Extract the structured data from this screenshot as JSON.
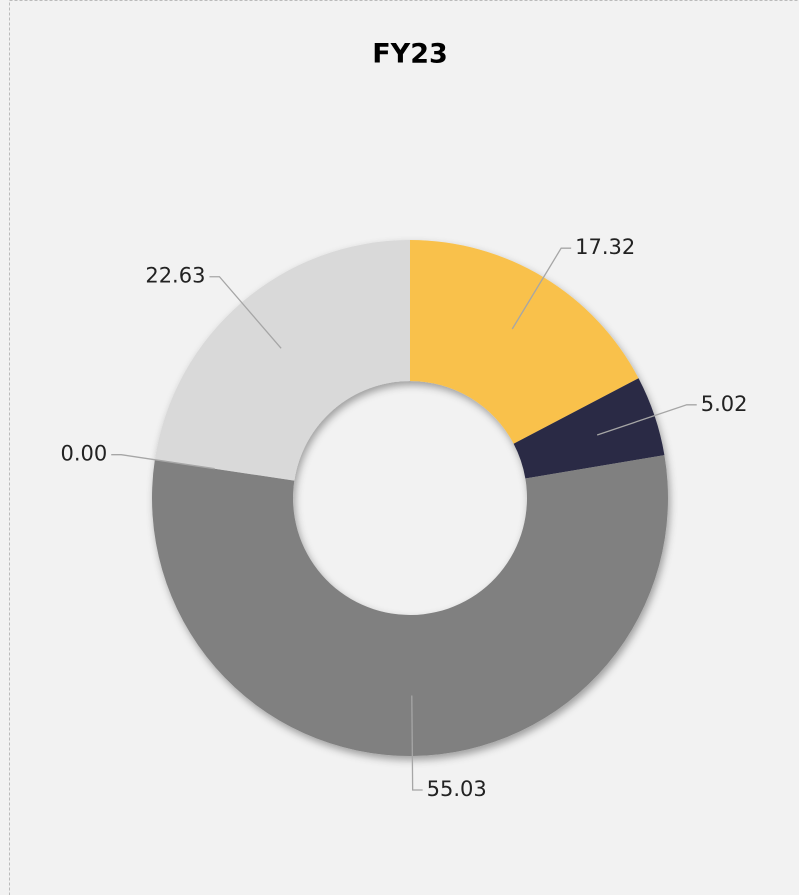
{
  "chart_data": {
    "type": "donut",
    "title": "FY23",
    "values": [
      17.32,
      5.02,
      55.03,
      0,
      22.63
    ],
    "value_labels": [
      "17.32",
      "5.02",
      "55.03",
      "0.00",
      "22.63"
    ],
    "colors": [
      "#f9c14c",
      "#2a2b45",
      "#808080",
      "#5a5a5a",
      "#d9d9d9"
    ]
  }
}
